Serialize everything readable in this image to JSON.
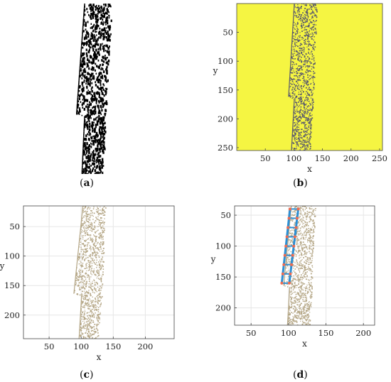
{
  "captions": [
    {
      "open": "(",
      "letter": "a",
      "close": ")"
    },
    {
      "open": "(",
      "letter": "b",
      "close": ")"
    },
    {
      "open": "(",
      "letter": "c",
      "close": ")"
    },
    {
      "open": "(",
      "letter": "d",
      "close": ")"
    }
  ],
  "colors": {
    "background_b": "#f5f542",
    "pixels_b": "#5a5a6e",
    "pixels_a": "#000000",
    "pixels_cd": "#b6a888",
    "line_d": "#2b8fd4",
    "marker_d": "#ee6a50",
    "grid": "#e6e6e6",
    "axis": "#444444"
  },
  "chart_data": [
    {
      "panel": "a",
      "type": "scatter",
      "title": "",
      "xlabel": "",
      "ylabel": "",
      "description_free": true,
      "axes_visible": false,
      "xlim": [
        80,
        160
      ],
      "ylim": [
        0,
        250
      ],
      "y_reversed": true,
      "boundary": {
        "left_edge": [
          [
            108,
            0
          ],
          [
            96,
            160
          ],
          [
            108,
            165
          ],
          [
            104,
            250
          ]
        ],
        "right_edge": [
          [
            150,
            0
          ],
          [
            140,
            165
          ],
          [
            136,
            250
          ]
        ]
      }
    },
    {
      "panel": "b",
      "type": "heatmap",
      "title": "",
      "xlabel": "x",
      "ylabel": "y",
      "xlim": [
        0,
        255
      ],
      "ylim": [
        0,
        255
      ],
      "y_reversed": true,
      "xticks": [
        50,
        100,
        150,
        200,
        250
      ],
      "yticks": [
        50,
        100,
        150,
        200,
        250
      ],
      "grid": false,
      "boundary": {
        "left_edge": [
          [
            100,
            0
          ],
          [
            90,
            160
          ],
          [
            100,
            165
          ],
          [
            95,
            255
          ]
        ],
        "right_edge": [
          [
            140,
            0
          ],
          [
            134,
            165
          ],
          [
            128,
            255
          ]
        ]
      }
    },
    {
      "panel": "c",
      "type": "scatter",
      "title": "",
      "xlabel": "x",
      "ylabel": "y",
      "xlim": [
        10,
        245
      ],
      "ylim": [
        15,
        240
      ],
      "y_reversed": true,
      "xticks": [
        50,
        100,
        150,
        200
      ],
      "yticks": [
        50,
        100,
        150,
        200
      ],
      "grid": true,
      "boundary": {
        "left_edge": [
          [
            102,
            15
          ],
          [
            88,
            162
          ],
          [
            100,
            166
          ],
          [
            96,
            240
          ]
        ],
        "right_edge": [
          [
            138,
            15
          ],
          [
            132,
            165
          ],
          [
            126,
            240
          ]
        ]
      }
    },
    {
      "panel": "d",
      "type": "scatter",
      "title": "",
      "xlabel": "x",
      "ylabel": "y",
      "xlim": [
        28,
        215
      ],
      "ylim": [
        35,
        228
      ],
      "y_reversed": true,
      "xticks": [
        50,
        100,
        150,
        200
      ],
      "yticks": [
        50,
        100,
        150,
        200
      ],
      "grid": true,
      "boundary": {
        "left_edge": [
          [
            103,
            35
          ],
          [
            93,
            163
          ],
          [
            101,
            166
          ],
          [
            98,
            228
          ]
        ],
        "right_edge": [
          [
            136,
            35
          ],
          [
            131,
            165
          ],
          [
            128,
            228
          ]
        ]
      },
      "fitted_lines": [
        {
          "x": [
            102,
            91
          ],
          "y": [
            40,
            160
          ]
        },
        {
          "x": [
            113,
            101
          ],
          "y": [
            40,
            160
          ]
        }
      ],
      "rungs_y": [
        40,
        55,
        70,
        85,
        100,
        115,
        130,
        145,
        160
      ]
    }
  ]
}
